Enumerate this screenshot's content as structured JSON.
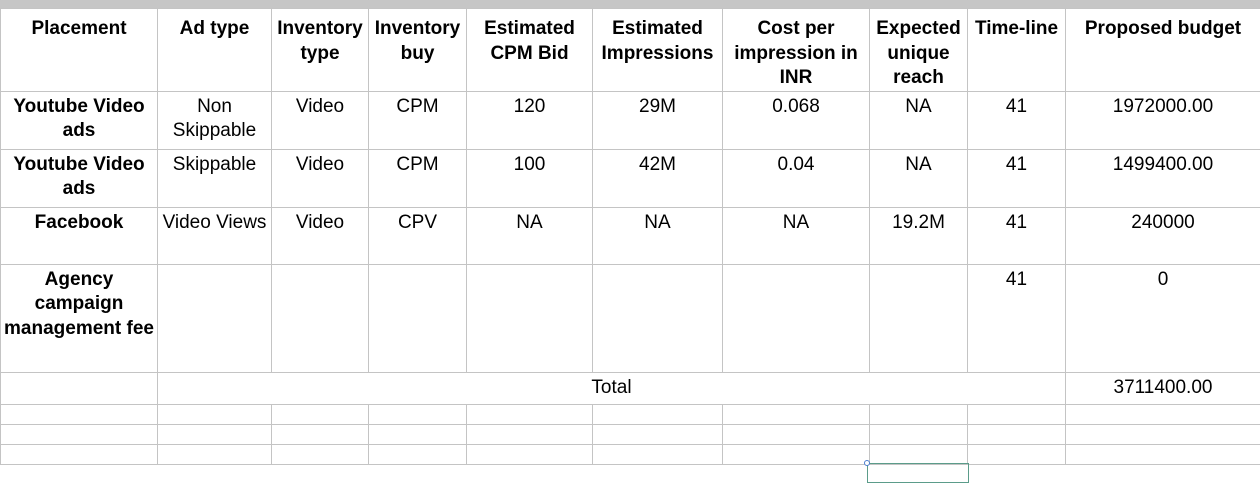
{
  "headers": [
    "Placement",
    "Ad type",
    "Inventory type",
    "Inventory buy",
    "Estimated CPM Bid",
    "Estimated Impressions",
    "Cost per impression in INR",
    "Expected unique reach",
    "Time-line",
    "Proposed budget"
  ],
  "rows": [
    [
      "Youtube Video ads",
      "Non Skippable",
      "Video",
      "CPM",
      "120",
      "29M",
      "0.068",
      "NA",
      "41",
      "1972000.00"
    ],
    [
      "Youtube Video ads",
      "Skippable",
      "Video",
      "CPM",
      "100",
      "42M",
      "0.04",
      "NA",
      "41",
      "1499400.00"
    ],
    [
      "Facebook",
      "Video Views",
      "Video",
      "CPV",
      "NA",
      "NA",
      "NA",
      "19.2M",
      "41",
      "240000"
    ],
    [
      "Agency campaign management fee",
      "",
      "",
      "",
      "",
      "",
      "",
      "",
      "41",
      "0"
    ]
  ],
  "total": {
    "label": "Total",
    "value": "3711400.00"
  }
}
